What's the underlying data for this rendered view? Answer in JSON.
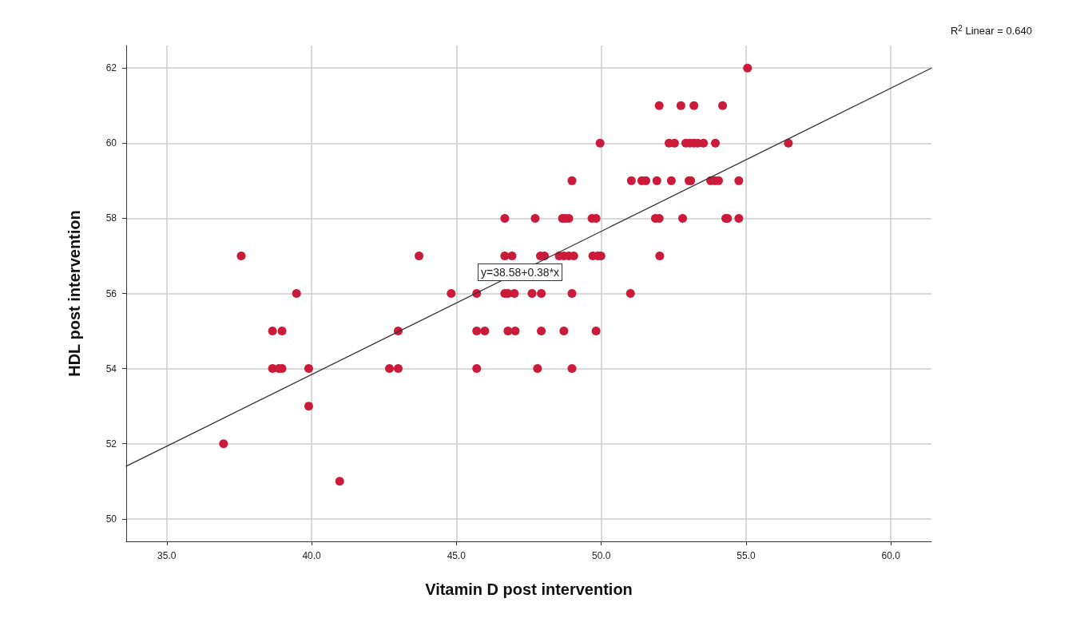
{
  "chart_data": {
    "type": "scatter",
    "xlabel": "Vitamin D post intervention",
    "ylabel": "HDL post intervention",
    "xlim": [
      33.6,
      61.4
    ],
    "ylim": [
      49.4,
      62.6
    ],
    "xticks": [
      {
        "value": 35,
        "label": "35.0"
      },
      {
        "value": 40,
        "label": "40.0"
      },
      {
        "value": 45,
        "label": "45.0"
      },
      {
        "value": 50,
        "label": "50.0"
      },
      {
        "value": 55,
        "label": "55.0"
      },
      {
        "value": 60,
        "label": "60.0"
      }
    ],
    "yticks": [
      50,
      52,
      54,
      56,
      58,
      60,
      62
    ],
    "grid": true,
    "marker": "circle",
    "series": [
      {
        "color": "#cc1a3a",
        "x": [
          55.05,
          52.0,
          52.75,
          53.2,
          54.19,
          49.96,
          52.34,
          52.53,
          52.92,
          53.06,
          53.2,
          53.33,
          53.53,
          53.94,
          56.46,
          48.99,
          51.04,
          51.4,
          51.54,
          51.92,
          52.42,
          53.03,
          53.09,
          53.78,
          53.92,
          54.05,
          54.75,
          46.67,
          47.72,
          48.66,
          48.76,
          48.88,
          49.68,
          49.82,
          51.87,
          52.0,
          52.81,
          54.3,
          54.36,
          54.75,
          37.57,
          43.71,
          46.67,
          46.92,
          47.9,
          48.04,
          48.55,
          48.71,
          48.88,
          49.05,
          49.71,
          49.88,
          49.99,
          52.02,
          39.48,
          44.82,
          45.7,
          46.67,
          46.78,
          47.0,
          47.61,
          47.93,
          48.99,
          51.01,
          38.65,
          38.98,
          42.99,
          45.7,
          45.98,
          46.78,
          47.03,
          47.93,
          48.71,
          49.82,
          38.65,
          38.87,
          38.98,
          39.9,
          42.69,
          42.99,
          45.7,
          47.8,
          48.99,
          39.9,
          36.96,
          40.97
        ],
        "values": [
          62,
          61,
          61,
          61,
          61,
          60,
          60,
          60,
          60,
          60,
          60,
          60,
          60,
          60,
          60,
          59,
          59,
          59,
          59,
          59,
          59,
          59,
          59,
          59,
          59,
          59,
          59,
          58,
          58,
          58,
          58,
          58,
          58,
          58,
          58,
          58,
          58,
          58,
          58,
          58,
          57,
          57,
          57,
          57,
          57,
          57,
          57,
          57,
          57,
          57,
          57,
          57,
          57,
          57,
          56,
          56,
          56,
          56,
          56,
          56,
          56,
          56,
          56,
          56,
          55,
          55,
          55,
          55,
          55,
          55,
          55,
          55,
          55,
          55,
          54,
          54,
          54,
          54,
          54,
          54,
          54,
          54,
          54,
          53,
          52,
          51
        ]
      },
      {
        "type": "line",
        "color": "#333333",
        "marker": "none",
        "line_style": "solid",
        "x": [
          33.6,
          61.4
        ],
        "values": [
          51.4,
          62.0
        ]
      }
    ],
    "annotations": [
      "y=38.58+0.38*x",
      "R$^{2}$ Linear = 0.640"
    ]
  }
}
